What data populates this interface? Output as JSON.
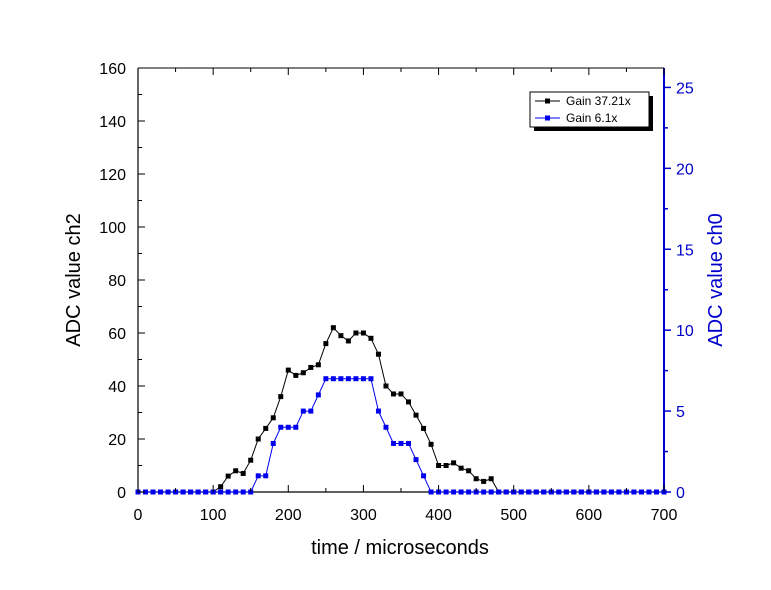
{
  "chart_data": {
    "type": "line",
    "xlabel": "time / microseconds",
    "ylabel": "ADC value ch2",
    "y2label": "ADC value ch0",
    "xlim": [
      0,
      700
    ],
    "ylim": [
      0,
      160
    ],
    "y2lim": [
      0,
      26.2
    ],
    "xticks": [
      0,
      100,
      200,
      300,
      400,
      500,
      600,
      700
    ],
    "yticks": [
      0,
      20,
      40,
      60,
      80,
      100,
      120,
      140,
      160
    ],
    "y2ticks": [
      0,
      5,
      10,
      15,
      20,
      25
    ],
    "grid": false,
    "legend_position": "top-right",
    "colors": {
      "left_axis": "#000000",
      "right_axis": "#0000cc"
    },
    "series": [
      {
        "name": "Gain 37.21x",
        "axis": "left",
        "color": "#000000",
        "marker": "square",
        "x": [
          0,
          10,
          20,
          30,
          40,
          50,
          60,
          70,
          80,
          90,
          100,
          110,
          120,
          130,
          140,
          150,
          160,
          170,
          180,
          190,
          200,
          210,
          220,
          230,
          240,
          250,
          260,
          270,
          280,
          290,
          300,
          310,
          320,
          330,
          340,
          350,
          360,
          370,
          380,
          390,
          400,
          410,
          420,
          430,
          440,
          450,
          460,
          470,
          480,
          490,
          500,
          510,
          520,
          530,
          540,
          550,
          560,
          570,
          580,
          590,
          600,
          610,
          620,
          630,
          640,
          650,
          660,
          670,
          680,
          690,
          700
        ],
        "y": [
          0,
          0,
          0,
          0,
          0,
          0,
          0,
          0,
          0,
          0,
          0,
          2,
          6,
          8,
          7,
          12,
          20,
          24,
          28,
          36,
          46,
          44,
          45,
          47,
          48,
          56,
          62,
          59,
          57,
          60,
          60,
          58,
          52,
          40,
          37,
          37,
          34,
          29,
          24,
          18,
          10,
          10,
          11,
          9,
          8,
          5,
          4,
          5,
          0,
          0,
          0,
          0,
          0,
          0,
          0,
          0,
          0,
          0,
          0,
          0,
          0,
          0,
          0,
          0,
          0,
          0,
          0,
          0,
          0,
          0,
          0
        ]
      },
      {
        "name": "Gain 6.1x",
        "axis": "right",
        "color": "#0000ee",
        "marker": "square",
        "x": [
          0,
          10,
          20,
          30,
          40,
          50,
          60,
          70,
          80,
          90,
          100,
          110,
          120,
          130,
          140,
          150,
          160,
          170,
          180,
          190,
          200,
          210,
          220,
          230,
          240,
          250,
          260,
          270,
          280,
          290,
          300,
          310,
          320,
          330,
          340,
          350,
          360,
          370,
          380,
          390,
          400,
          410,
          420,
          430,
          440,
          450,
          460,
          470,
          480,
          490,
          500,
          510,
          520,
          530,
          540,
          550,
          560,
          570,
          580,
          590,
          600,
          610,
          620,
          630,
          640,
          650,
          660,
          670,
          680,
          690,
          700
        ],
        "y": [
          0,
          0,
          0,
          0,
          0,
          0,
          0,
          0,
          0,
          0,
          0,
          0,
          0,
          0,
          0,
          0,
          1,
          1,
          3,
          4,
          4,
          4,
          5,
          5,
          6,
          7,
          7,
          7,
          7,
          7,
          7,
          7,
          5,
          4,
          3,
          3,
          3,
          2,
          1,
          0,
          0,
          0,
          0,
          0,
          0,
          0,
          0,
          0,
          0,
          0,
          0,
          0,
          0,
          0,
          0,
          0,
          0,
          0,
          0,
          0,
          0,
          0,
          0,
          0,
          0,
          0,
          0,
          0,
          0,
          0,
          0
        ]
      }
    ]
  }
}
